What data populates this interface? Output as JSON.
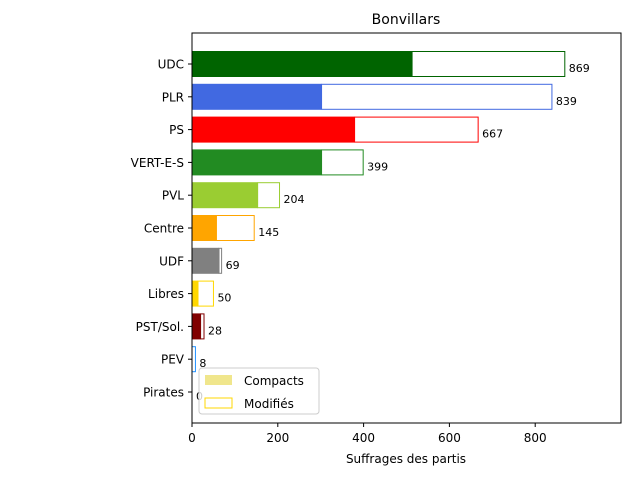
{
  "chart_data": {
    "type": "bar",
    "orientation": "horizontal",
    "stacked": true,
    "title": "Bonvillars",
    "xlabel": "Suffrages des partis",
    "ylabel": "",
    "xlim": [
      0,
      1000
    ],
    "xticks": [
      0,
      200,
      400,
      600,
      800
    ],
    "categories": [
      "UDC",
      "PLR",
      "PS",
      "VERT-E-S",
      "PVL",
      "Centre",
      "UDF",
      "Libres",
      "PST/Sol.",
      "PEV",
      "Pirates"
    ],
    "colors": [
      "#006400",
      "#4169e1",
      "#ff0000",
      "#228b22",
      "#9acd32",
      "#ffa500",
      "#808080",
      "#ffd700",
      "#800000",
      "#1e90ff",
      "#800080"
    ],
    "series": [
      {
        "name": "Compacts",
        "values": [
          513,
          302,
          379,
          302,
          153,
          57,
          63,
          14,
          20,
          0,
          0
        ]
      },
      {
        "name": "Modifiés",
        "values": [
          356,
          537,
          288,
          97,
          51,
          88,
          6,
          36,
          8,
          8,
          0
        ]
      }
    ],
    "totals": [
      869,
      839,
      667,
      399,
      204,
      145,
      69,
      50,
      28,
      8,
      0
    ],
    "legend": {
      "placement": "lower-left",
      "compact_swatch": "#f0e68c",
      "modified_swatch": "#ffd700"
    }
  }
}
